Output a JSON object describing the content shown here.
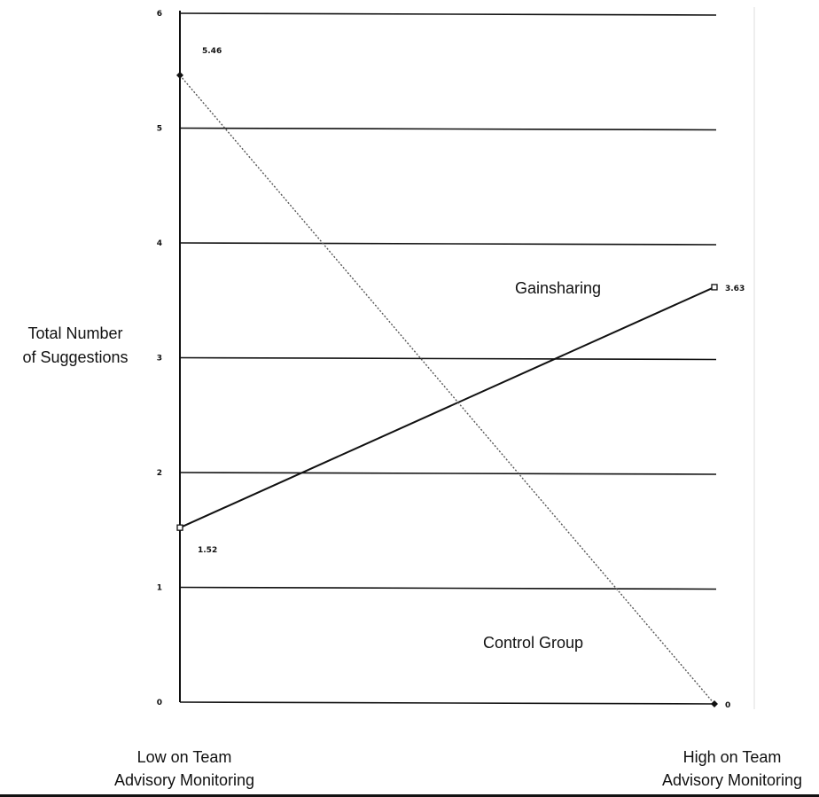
{
  "chart_data": {
    "type": "line",
    "title": "",
    "ylabel_line1": "Total Number",
    "ylabel_line2": "of Suggestions",
    "x_categories": [
      {
        "line1": "Low on Team",
        "line2": "Advisory Monitoring"
      },
      {
        "line1": "High on Team",
        "line2": "Advisory Monitoring"
      }
    ],
    "ylim": [
      0,
      6
    ],
    "yticks": [
      "0",
      "1",
      "2",
      "3",
      "4",
      "5",
      "6"
    ],
    "grid": true,
    "series": [
      {
        "name": "Gainsharing",
        "values": [
          1.52,
          3.63
        ],
        "labels": [
          "1.52",
          "3.63"
        ],
        "style": "solid",
        "marker": "open-square",
        "color": "#111111"
      },
      {
        "name": "Control Group",
        "values": [
          5.46,
          0
        ],
        "labels": [
          "5.46",
          "0"
        ],
        "style": "dotted",
        "marker": "filled-diamond",
        "color": "#555555"
      }
    ]
  }
}
